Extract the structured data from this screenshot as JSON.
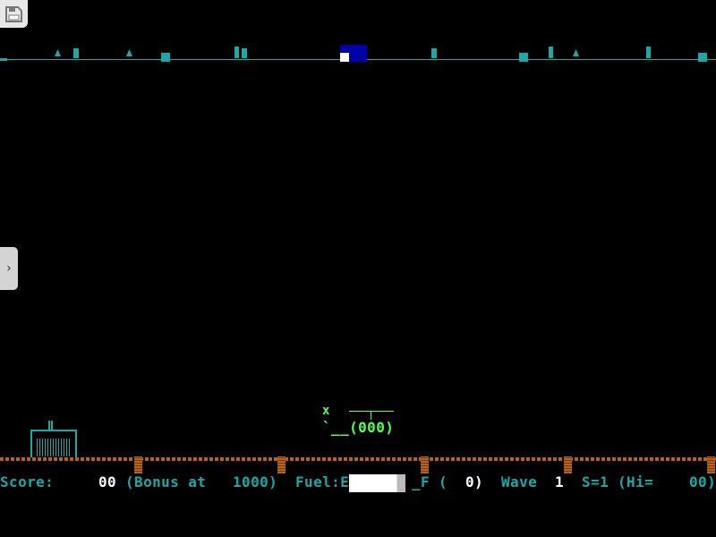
{
  "status": {
    "score_label": "Score:",
    "score_value": "00",
    "bonus_label": "(Bonus at",
    "bonus_value": "1000)",
    "fuel_label": "Fuel:E",
    "fuel_full_label": "_F",
    "fuel_count_open": "(",
    "fuel_count": "0)",
    "fuel_level_percent": 90,
    "wave_label": "Wave",
    "wave_value": "1",
    "ships": "S=1",
    "hi_label": "(Hi=",
    "hi_value": "00)"
  },
  "player": {
    "marker": "x",
    "body": "`__(000)"
  },
  "colors": {
    "hud": "#1aa8a8",
    "ground": "#b8621b",
    "player": "#55ff55",
    "radar_view": "#0000a8"
  },
  "ui": {
    "save_icon": "floppy-disk-icon",
    "side_icon": "chevron-right-icon",
    "side_glyph": "›"
  }
}
